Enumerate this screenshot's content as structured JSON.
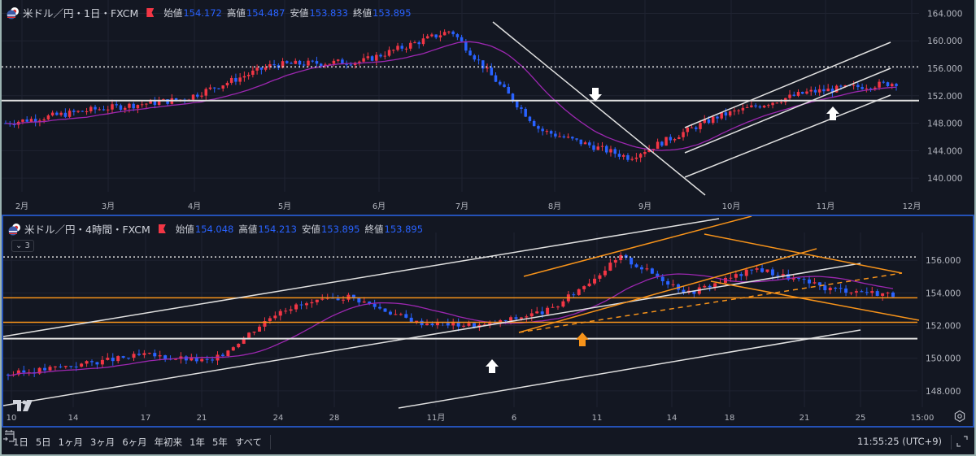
{
  "colors": {
    "background": "#131722",
    "grid": "#1f2331",
    "bull": "#f23645",
    "bear": "#2962ff",
    "ma": "#9c27b0",
    "trendline": "#e0e0e0",
    "orange": "#f7931a",
    "active_border": "#2451b7"
  },
  "top_pane": {
    "legend": {
      "symbol": "米ドル／円・1日・FXCM",
      "open_label": "始値",
      "open": "154.172",
      "high_label": "高値",
      "high": "154.487",
      "low_label": "安値",
      "low": "153.833",
      "close_label": "終値",
      "close": "153.895"
    },
    "price_axis": [
      "164.000",
      "160.000",
      "156.000",
      "152.000",
      "148.000",
      "144.000",
      "140.000"
    ],
    "time_axis": [
      "2月",
      "3月",
      "4月",
      "5月",
      "6月",
      "7月",
      "8月",
      "9月",
      "10月",
      "11月",
      "12月"
    ]
  },
  "bottom_pane": {
    "legend": {
      "symbol": "米ドル／円・4時間・FXCM",
      "open_label": "始値",
      "open": "154.048",
      "high_label": "高値",
      "high": "154.213",
      "low_label": "安値",
      "low": "153.895",
      "close_label": "終値",
      "close": "153.895"
    },
    "collapse_label": "⌄ 3",
    "price_axis": [
      "156.000",
      "154.000",
      "152.000",
      "150.000",
      "148.000"
    ],
    "time_axis": [
      "10",
      "14",
      "17",
      "21",
      "24",
      "28",
      "11月",
      "6",
      "11",
      "14",
      "18",
      "21",
      "25",
      "15:00"
    ]
  },
  "toolbar": {
    "ranges": [
      "1日",
      "5日",
      "1ヶ月",
      "3ヶ月",
      "6ヶ月",
      "年初来",
      "1年",
      "5年",
      "すべて"
    ],
    "clock": "11:55:25 (UTC+9)"
  },
  "chart_data": [
    {
      "type": "candlestick",
      "title": "米ドル／円・1日・FXCM",
      "ohlc_last": {
        "open": 154.172,
        "high": 154.487,
        "low": 153.833,
        "close": 153.895
      },
      "x": [
        "2月",
        "3月",
        "4月",
        "5月",
        "6月",
        "7月",
        "8月",
        "9月",
        "10月",
        "11月",
        "12月"
      ],
      "close_approx": [
        148.0,
        150.0,
        151.5,
        156.5,
        157.0,
        161.5,
        147.0,
        143.0,
        149.0,
        152.5,
        153.9
      ],
      "ylim": [
        138,
        165
      ],
      "price_ticks": [
        140,
        144,
        148,
        152,
        156,
        160,
        164
      ],
      "horizontal_lines": [
        {
          "price": 151.3,
          "style": "solid",
          "color": "white"
        },
        {
          "price": 156.2,
          "style": "dotted",
          "color": "white"
        }
      ],
      "annotations": [
        "down arrow near 8月 at 151",
        "up arrow near 11月 at 149",
        "descending trendline Jul→Sep",
        "ascending channel Sep→Nov"
      ],
      "grid": true
    },
    {
      "type": "candlestick",
      "title": "米ドル／円・4時間・FXCM",
      "ohlc_last": {
        "open": 154.048,
        "high": 154.213,
        "low": 153.895,
        "close": 153.895
      },
      "x": [
        "10",
        "14",
        "17",
        "21",
        "24",
        "28",
        "11月",
        "6",
        "11",
        "14",
        "18",
        "21",
        "25",
        "15:00"
      ],
      "close_approx": [
        149.0,
        149.6,
        150.2,
        149.8,
        153.0,
        153.8,
        152.2,
        152.0,
        153.0,
        156.2,
        154.0,
        155.5,
        154.3,
        153.9
      ],
      "ylim": [
        147,
        157
      ],
      "price_ticks": [
        148,
        150,
        152,
        154,
        156
      ],
      "horizontal_lines": [
        {
          "price": 153.7,
          "color": "orange"
        },
        {
          "price": 152.2,
          "color": "orange"
        },
        {
          "price": 151.2,
          "color": "white"
        },
        {
          "price": 156.2,
          "style": "dotted",
          "color": "white"
        }
      ],
      "annotations": [
        "white up arrow near 11月 5",
        "orange up arrow near 11月 10",
        "orange rising channel",
        "orange falling wedge"
      ],
      "grid": true
    }
  ]
}
